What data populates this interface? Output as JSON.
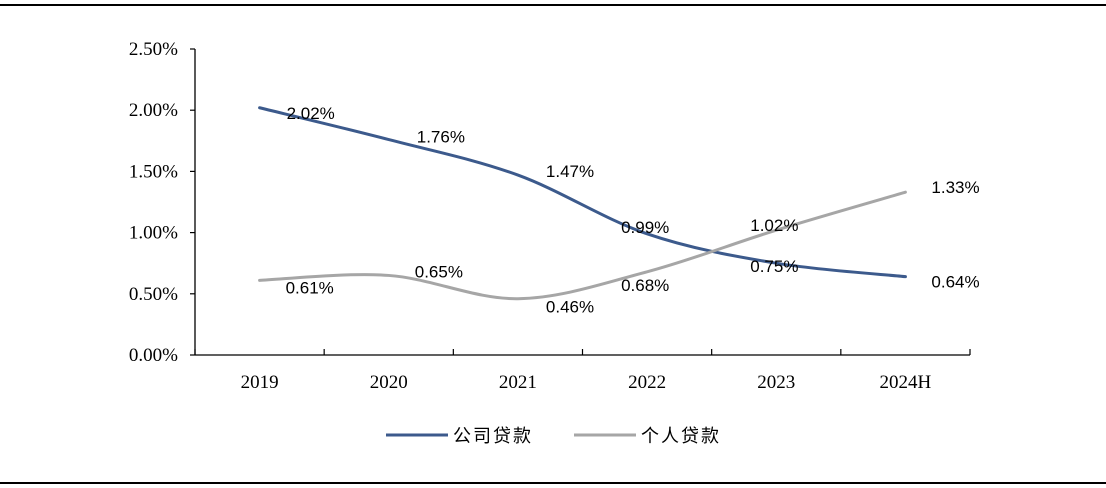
{
  "chart_data": {
    "type": "line",
    "title": "",
    "xlabel": "",
    "ylabel": "",
    "categories": [
      "2019",
      "2020",
      "2021",
      "2022",
      "2023",
      "2024H"
    ],
    "ylim": [
      0,
      0.025
    ],
    "yticks": [
      "0.00%",
      "0.50%",
      "1.00%",
      "1.50%",
      "2.00%",
      "2.50%"
    ],
    "grid": false,
    "legend": "bottom",
    "series": [
      {
        "name": "公司贷款",
        "color": "#3c5a8c",
        "values": [
          0.0202,
          0.0176,
          0.0147,
          0.0099,
          0.0075,
          0.0064
        ],
        "labels": [
          "2.02%",
          "1.76%",
          "1.47%",
          "0.99%",
          "0.75%",
          "0.64%"
        ]
      },
      {
        "name": "个人贷款",
        "color": "#a6a6a6",
        "values": [
          0.0061,
          0.0065,
          0.0046,
          0.0068,
          0.0102,
          0.0133
        ],
        "labels": [
          "0.61%",
          "0.65%",
          "0.46%",
          "0.68%",
          "1.02%",
          "1.33%"
        ]
      }
    ]
  }
}
